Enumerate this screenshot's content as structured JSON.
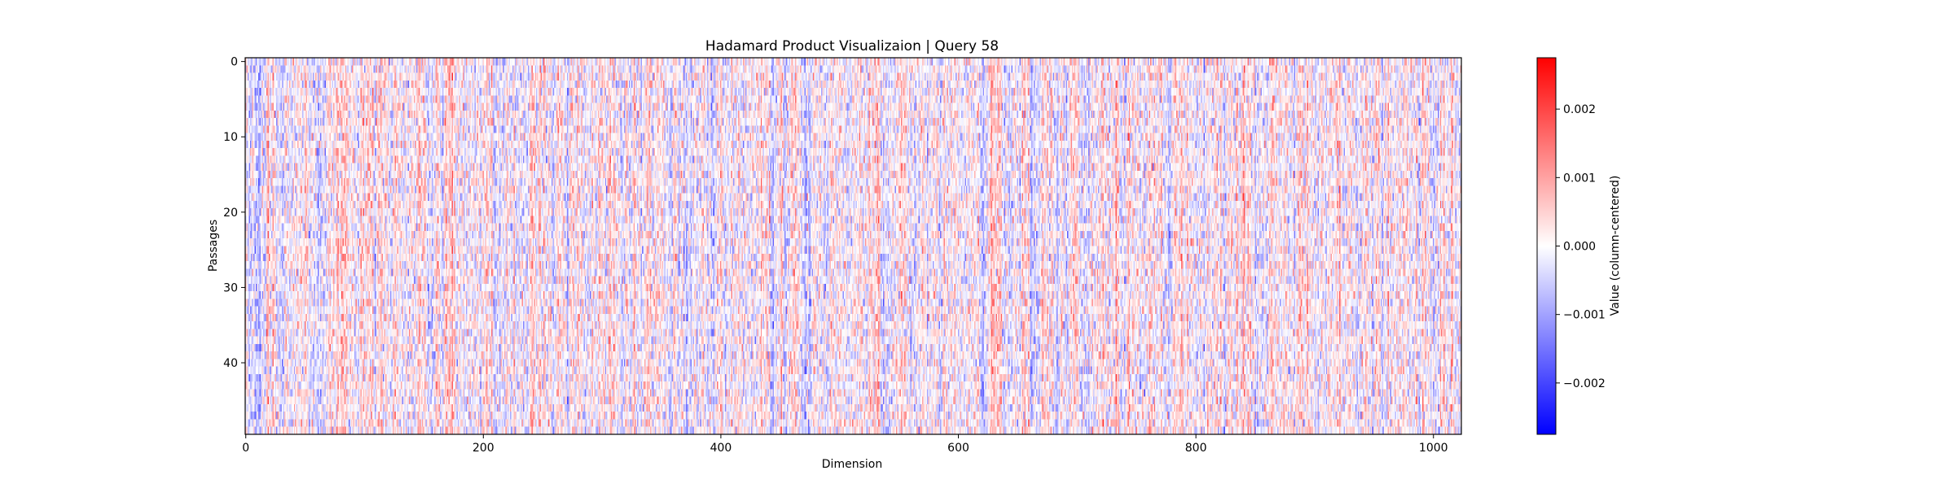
{
  "chart_data": {
    "type": "heatmap",
    "title": "Hadamard Product Visualizaion | Query 58",
    "xlabel": "Dimension",
    "ylabel": "Passages",
    "xlim": [
      0,
      1024
    ],
    "ylim": [
      0,
      50
    ],
    "y_inverted": true,
    "rows": 50,
    "columns": 1024,
    "xticks": [
      0,
      200,
      400,
      600,
      800,
      1000
    ],
    "xtick_labels": [
      "0",
      "200",
      "400",
      "600",
      "800",
      "1000"
    ],
    "yticks": [
      0,
      10,
      20,
      30,
      40
    ],
    "ytick_labels": [
      "0",
      "10",
      "20",
      "30",
      "40"
    ],
    "colormap": "bwr",
    "colors": {
      "low": "#0000ff",
      "mid": "#ffffff",
      "high": "#ff0000"
    },
    "value_range": [
      -0.00275,
      0.00275
    ],
    "values_note": "",
    "colorbar": {
      "label": "Value (column-centered)",
      "ticks": [
        0.002,
        0.001,
        0.0,
        -0.001,
        -0.002
      ],
      "tick_labels": [
        "0.002",
        "0.001",
        "0.000",
        "−0.001",
        "−0.002"
      ]
    },
    "grid": false,
    "legend": "colorbar-right"
  }
}
